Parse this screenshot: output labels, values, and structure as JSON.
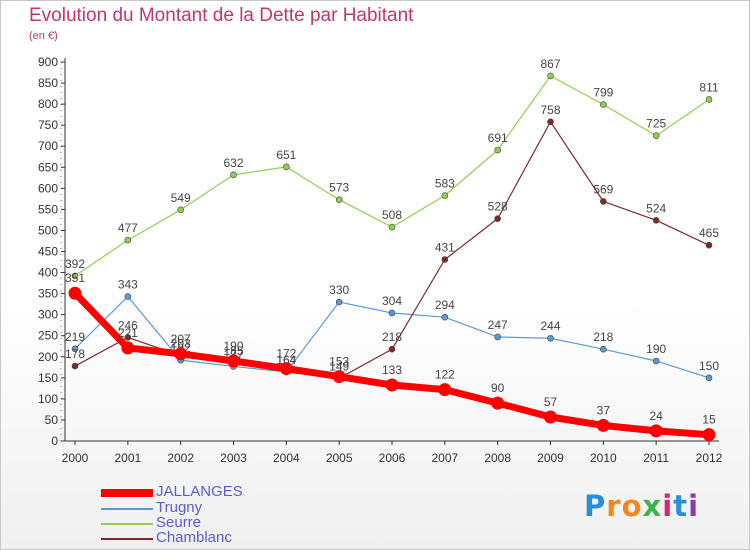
{
  "header": {
    "title": "Evolution du Montant de la Dette par Habitant",
    "subtitle": "(en €)"
  },
  "logo": {
    "text": "Proxiti"
  },
  "chart_data": {
    "type": "line",
    "title": "Evolution du Montant de la Dette par Habitant",
    "subtitle": "(en €)",
    "x": [
      "2000",
      "2001",
      "2002",
      "2003",
      "2004",
      "2005",
      "2006",
      "2007",
      "2008",
      "2009",
      "2010",
      "2011",
      "2012"
    ],
    "ylim": [
      0,
      900
    ],
    "yticks": [
      0,
      50,
      100,
      150,
      200,
      250,
      300,
      350,
      400,
      450,
      500,
      550,
      600,
      650,
      700,
      750,
      800,
      850,
      900
    ],
    "grid": false,
    "legend_position": "bottom-left",
    "series": [
      {
        "name": "JALLANGES",
        "color": "#ff0000",
        "values": [
          351,
          221,
          207,
          190,
          172,
          153,
          133,
          122,
          90,
          57,
          37,
          24,
          15
        ]
      },
      {
        "name": "Trugny",
        "color": "#5b9bd5",
        "values": [
          219,
          343,
          192,
          177,
          164,
          330,
          304,
          294,
          247,
          244,
          218,
          190,
          150
        ]
      },
      {
        "name": "Seurre",
        "color": "#8fd14f",
        "values": [
          392,
          477,
          549,
          632,
          651,
          573,
          508,
          583,
          691,
          867,
          799,
          725,
          811
        ]
      },
      {
        "name": "Chamblanc",
        "color": "#7f2a2a",
        "values": [
          178,
          246,
          203,
          185,
          164,
          149,
          218,
          431,
          528,
          758,
          569,
          524,
          465
        ]
      }
    ]
  }
}
